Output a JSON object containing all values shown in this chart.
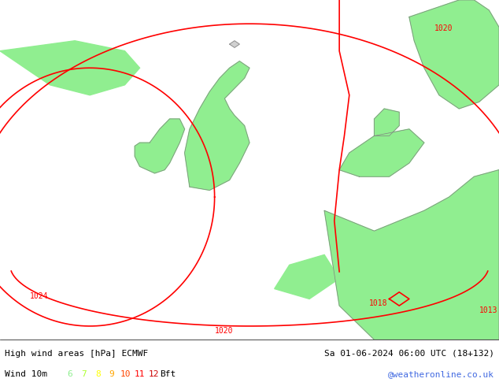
{
  "title_left": "High wind areas [hPa] ECMWF",
  "title_right": "Sa 01-06-2024 06:00 UTC (18+132)",
  "subtitle_left": "Wind 10m",
  "bft_labels": [
    "6",
    "7",
    "8",
    "9",
    "10",
    "11",
    "12",
    "Bft"
  ],
  "bft_colors": [
    "#90ee90",
    "#adff2f",
    "#ffff00",
    "#ffa500",
    "#ff4500",
    "#ff0000",
    "#cc0000",
    "#000000"
  ],
  "credit": "@weatheronline.co.uk",
  "credit_color": "#4169e1",
  "background_color": "#e8e8e8",
  "land_color": "#90ee90",
  "sea_color": "#e8e8e8",
  "contour_color": "#ff0000",
  "coast_color": "#808080",
  "font_color": "#000000",
  "font_size": 9,
  "contour_labels": [
    "1020",
    "1024",
    "1020",
    "1018",
    "1013"
  ],
  "figsize": [
    6.34,
    4.9
  ],
  "dpi": 100
}
